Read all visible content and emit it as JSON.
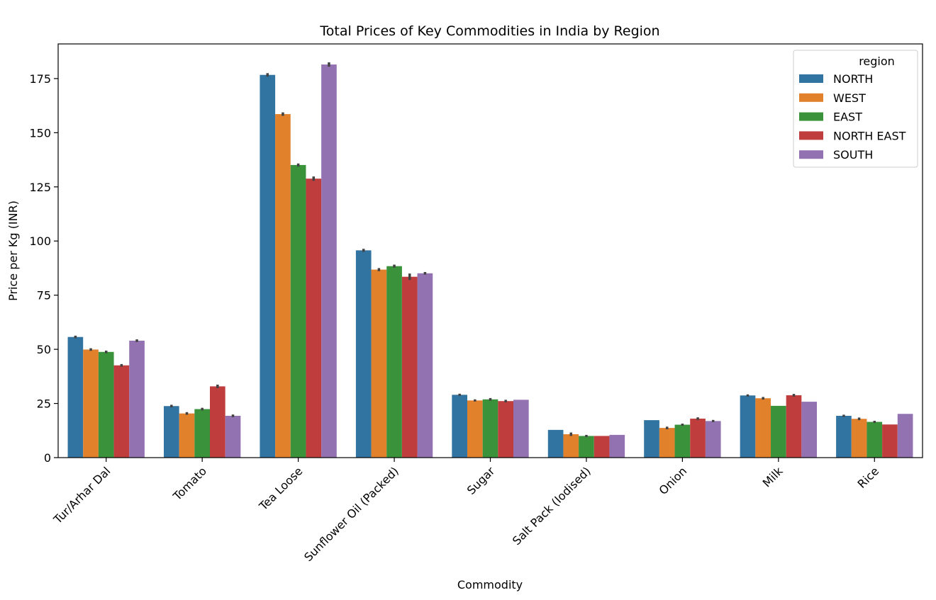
{
  "chart_data": {
    "type": "bar",
    "title": "Total Prices of Key Commodities in India by Region",
    "xlabel": "Commodity",
    "ylabel": "Price per Kg (INR)",
    "ylim": [
      0,
      191
    ],
    "yticks": [
      0,
      25,
      50,
      75,
      100,
      125,
      150,
      175
    ],
    "grid": false,
    "legend": {
      "title": "region",
      "placement": "top-right"
    },
    "categories": [
      "Tur/Arhar Dal",
      "Tomato",
      "Tea Loose",
      "Sunflower Oil (Packed)",
      "Sugar",
      "Salt Pack (Iodised)",
      "Onion",
      "Milk",
      "Rice"
    ],
    "series": [
      {
        "name": "NORTH",
        "color": "#3274a1",
        "values": [
          55.7,
          23.8,
          176.7,
          95.7,
          29.0,
          12.8,
          17.3,
          28.7,
          19.3
        ]
      },
      {
        "name": "WEST",
        "color": "#e1812c",
        "values": [
          49.9,
          20.4,
          158.6,
          86.8,
          26.4,
          10.8,
          13.7,
          27.4,
          17.9
        ]
      },
      {
        "name": "EAST",
        "color": "#3a923a",
        "values": [
          48.8,
          22.4,
          135.1,
          88.4,
          26.9,
          10.0,
          15.2,
          23.9,
          16.5
        ]
      },
      {
        "name": "NORTH EAST",
        "color": "#c03d3e",
        "values": [
          42.6,
          32.9,
          128.8,
          83.5,
          26.1,
          10.0,
          18.0,
          28.8,
          15.3
        ]
      },
      {
        "name": "SOUTH",
        "color": "#9372b2",
        "values": [
          54.0,
          19.3,
          181.5,
          85.1,
          26.7,
          10.5,
          16.9,
          25.8,
          20.2
        ]
      }
    ],
    "error_half_widths": [
      [
        0.6,
        0.6,
        0.8,
        0.7,
        0.5,
        0.0,
        0.0,
        0.5,
        0.5
      ],
      [
        0.6,
        0.6,
        0.8,
        0.7,
        0.5,
        0.8,
        0.6,
        0.6,
        0.6
      ],
      [
        0.6,
        0.6,
        0.7,
        0.7,
        0.6,
        0.5,
        0.5,
        0.0,
        0.5
      ],
      [
        0.6,
        0.8,
        1.0,
        1.5,
        0.6,
        0.0,
        0.6,
        0.6,
        0.0
      ],
      [
        0.6,
        0.6,
        1.0,
        0.6,
        0.0,
        0.0,
        0.5,
        0.0,
        0.0
      ]
    ]
  }
}
